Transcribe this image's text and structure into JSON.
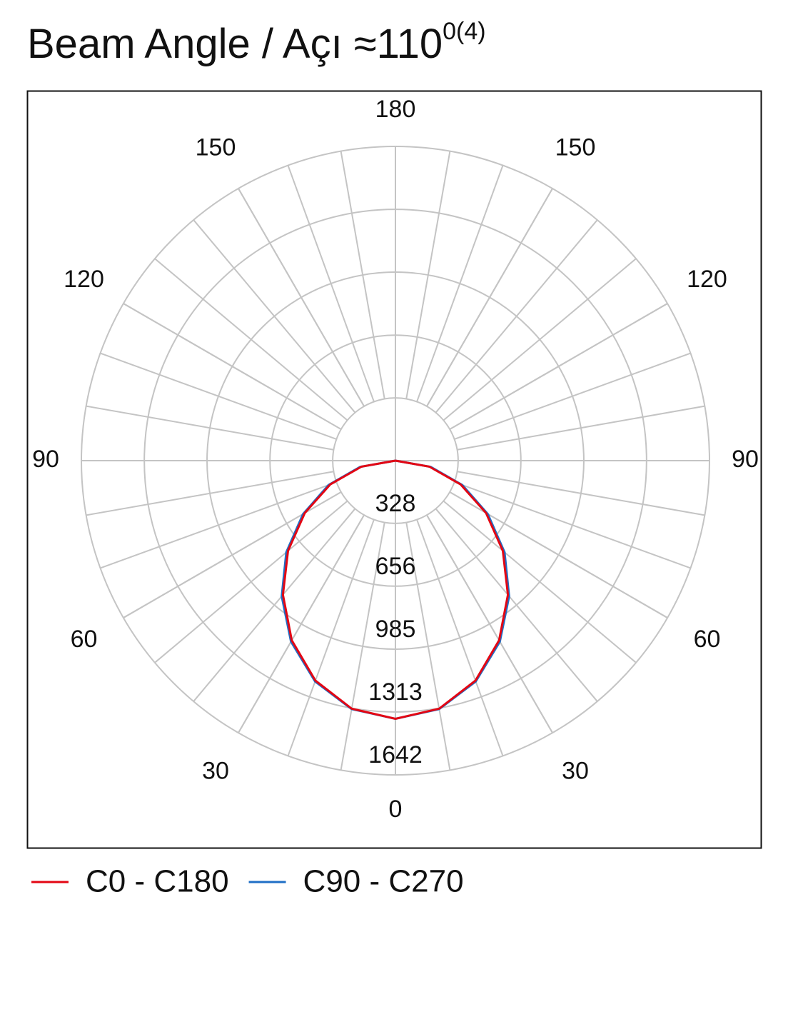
{
  "chart_data": {
    "type": "polar",
    "title": "Beam Angle / Açı ≈110",
    "title_superscript": "0(4)",
    "theta": [
      -90,
      -80,
      -70,
      -60,
      -50,
      -40,
      -30,
      -20,
      -10,
      0,
      10,
      20,
      30,
      40,
      50,
      60,
      70,
      80,
      90
    ],
    "series": [
      {
        "name": "C90 - C270",
        "color": "#1f6fc6",
        "values": [
          0,
          187,
          372,
          558,
          745,
          925,
          1092,
          1228,
          1318,
          1349,
          1318,
          1228,
          1092,
          925,
          745,
          558,
          372,
          187,
          0
        ]
      },
      {
        "name": "C0 - C180",
        "color": "#e30613",
        "values": [
          0,
          180,
          362,
          547,
          733,
          915,
          1084,
          1223,
          1316,
          1349,
          1316,
          1223,
          1084,
          915,
          733,
          547,
          362,
          180,
          0
        ]
      }
    ],
    "rlim": [
      0,
      1642
    ],
    "rticks": [
      328,
      656,
      985,
      1313,
      1642
    ],
    "thetaticks": [
      0,
      30,
      60,
      90,
      120,
      150,
      180
    ],
    "grid": true
  }
}
